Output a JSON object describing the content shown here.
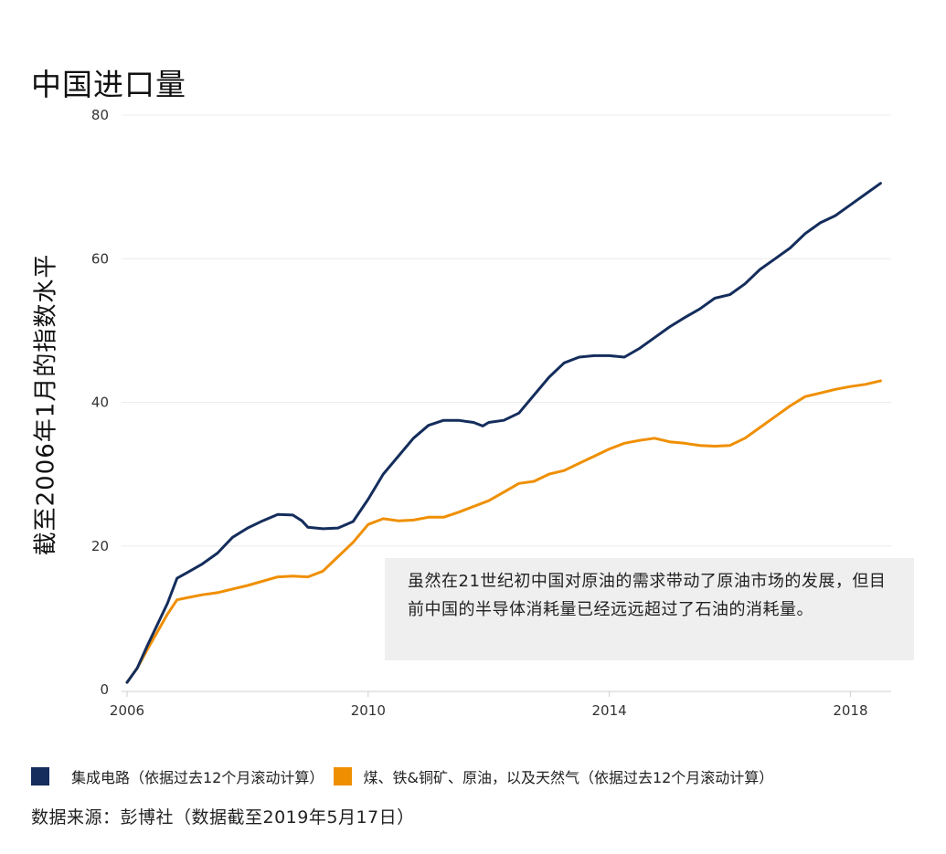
{
  "title": "中国进口量",
  "chart_data": {
    "type": "line",
    "title": "中国进口量",
    "ylabel": "截至2006年1月的指数水平",
    "xlabel": "",
    "ylim": [
      0,
      80
    ],
    "xlim": [
      2006,
      2018.6
    ],
    "yticks": [
      0,
      20,
      40,
      60,
      80
    ],
    "xticks": [
      2006,
      2010,
      2014,
      2018
    ],
    "grid": true,
    "series": [
      {
        "name": "集成电路（依据过去12个月滚动计算）",
        "color": "#142d5c",
        "points": [
          [
            2006.0,
            1
          ],
          [
            2006.17,
            3
          ],
          [
            2006.33,
            6
          ],
          [
            2006.5,
            9
          ],
          [
            2006.67,
            12
          ],
          [
            2006.83,
            15.5
          ],
          [
            2007.0,
            16.3
          ],
          [
            2007.25,
            17.5
          ],
          [
            2007.5,
            19
          ],
          [
            2007.75,
            21.2
          ],
          [
            2008.0,
            22.5
          ],
          [
            2008.25,
            23.5
          ],
          [
            2008.5,
            24.4
          ],
          [
            2008.75,
            24.3
          ],
          [
            2008.9,
            23.5
          ],
          [
            2009.0,
            22.6
          ],
          [
            2009.25,
            22.4
          ],
          [
            2009.5,
            22.5
          ],
          [
            2009.75,
            23.4
          ],
          [
            2010.0,
            26.5
          ],
          [
            2010.25,
            30
          ],
          [
            2010.5,
            32.5
          ],
          [
            2010.75,
            35
          ],
          [
            2011.0,
            36.8
          ],
          [
            2011.25,
            37.5
          ],
          [
            2011.5,
            37.5
          ],
          [
            2011.75,
            37.2
          ],
          [
            2011.9,
            36.7
          ],
          [
            2012.0,
            37.2
          ],
          [
            2012.25,
            37.5
          ],
          [
            2012.5,
            38.5
          ],
          [
            2012.75,
            41
          ],
          [
            2013.0,
            43.5
          ],
          [
            2013.25,
            45.5
          ],
          [
            2013.5,
            46.3
          ],
          [
            2013.75,
            46.5
          ],
          [
            2014.0,
            46.5
          ],
          [
            2014.25,
            46.3
          ],
          [
            2014.5,
            47.5
          ],
          [
            2014.75,
            49
          ],
          [
            2015.0,
            50.5
          ],
          [
            2015.25,
            51.8
          ],
          [
            2015.5,
            53
          ],
          [
            2015.75,
            54.5
          ],
          [
            2016.0,
            55
          ],
          [
            2016.25,
            56.5
          ],
          [
            2016.5,
            58.5
          ],
          [
            2016.75,
            60
          ],
          [
            2017.0,
            61.5
          ],
          [
            2017.25,
            63.5
          ],
          [
            2017.5,
            65
          ],
          [
            2017.75,
            66
          ],
          [
            2018.0,
            67.5
          ],
          [
            2018.25,
            69
          ],
          [
            2018.5,
            70.5
          ]
        ]
      },
      {
        "name": "煤、铁&铜矿、原油，以及天然气（依据过去12个月滚动计算）",
        "color": "#ef8f00",
        "points": [
          [
            2006.0,
            1
          ],
          [
            2006.17,
            3
          ],
          [
            2006.33,
            5.5
          ],
          [
            2006.5,
            8
          ],
          [
            2006.67,
            10.5
          ],
          [
            2006.83,
            12.5
          ],
          [
            2007.0,
            12.8
          ],
          [
            2007.25,
            13.2
          ],
          [
            2007.5,
            13.5
          ],
          [
            2007.75,
            14
          ],
          [
            2008.0,
            14.5
          ],
          [
            2008.25,
            15.1
          ],
          [
            2008.5,
            15.7
          ],
          [
            2008.75,
            15.8
          ],
          [
            2009.0,
            15.7
          ],
          [
            2009.25,
            16.5
          ],
          [
            2009.5,
            18.5
          ],
          [
            2009.75,
            20.5
          ],
          [
            2010.0,
            23
          ],
          [
            2010.25,
            23.8
          ],
          [
            2010.5,
            23.5
          ],
          [
            2010.75,
            23.6
          ],
          [
            2011.0,
            24
          ],
          [
            2011.25,
            24
          ],
          [
            2011.5,
            24.7
          ],
          [
            2011.75,
            25.5
          ],
          [
            2012.0,
            26.3
          ],
          [
            2012.25,
            27.5
          ],
          [
            2012.5,
            28.7
          ],
          [
            2012.75,
            29
          ],
          [
            2013.0,
            30
          ],
          [
            2013.25,
            30.5
          ],
          [
            2013.5,
            31.5
          ],
          [
            2013.75,
            32.5
          ],
          [
            2014.0,
            33.5
          ],
          [
            2014.25,
            34.3
          ],
          [
            2014.5,
            34.7
          ],
          [
            2014.75,
            35
          ],
          [
            2015.0,
            34.5
          ],
          [
            2015.25,
            34.3
          ],
          [
            2015.5,
            34
          ],
          [
            2015.75,
            33.9
          ],
          [
            2016.0,
            34
          ],
          [
            2016.25,
            35
          ],
          [
            2016.5,
            36.5
          ],
          [
            2016.75,
            38
          ],
          [
            2017.0,
            39.5
          ],
          [
            2017.25,
            40.8
          ],
          [
            2017.5,
            41.3
          ],
          [
            2017.75,
            41.8
          ],
          [
            2018.0,
            42.2
          ],
          [
            2018.25,
            42.5
          ],
          [
            2018.5,
            43
          ]
        ]
      }
    ],
    "annotation": "虽然在21世纪初中国对原油的需求带动了原油市场的发展，但目前中国的半导体消耗量已经远远超过了石油的消耗量。"
  },
  "source": "数据来源：彭博社（数据截至2019年5月17日）"
}
